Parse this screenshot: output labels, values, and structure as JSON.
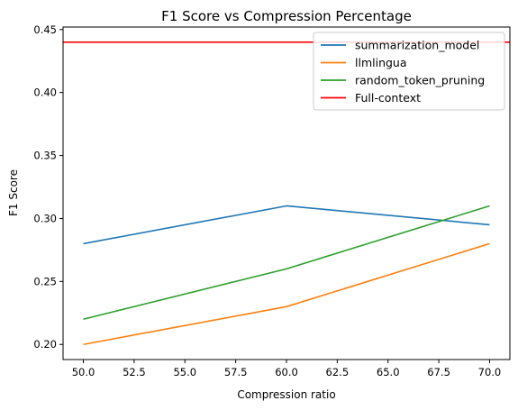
{
  "chart_data": {
    "type": "line",
    "title": "F1 Score vs Compression Percentage",
    "xlabel": "Compression ratio",
    "ylabel": "F1 Score",
    "xlim": [
      49.0,
      71.0
    ],
    "ylim": [
      0.188,
      0.452
    ],
    "x_ticks": [
      "50.0",
      "52.5",
      "55.0",
      "57.5",
      "60.0",
      "62.5",
      "65.0",
      "67.5",
      "70.0"
    ],
    "x_tick_values": [
      50.0,
      52.5,
      55.0,
      57.5,
      60.0,
      62.5,
      65.0,
      67.5,
      70.0
    ],
    "y_ticks": [
      "0.20",
      "0.25",
      "0.30",
      "0.35",
      "0.40",
      "0.45"
    ],
    "y_tick_values": [
      0.2,
      0.25,
      0.3,
      0.35,
      0.4,
      0.45
    ],
    "grid": false,
    "legend_position": "top-right",
    "x": [
      50,
      60,
      70
    ],
    "series": [
      {
        "name": "summarization_model",
        "color": "#1f77b4",
        "values": [
          0.28,
          0.31,
          0.295
        ]
      },
      {
        "name": "llmlingua",
        "color": "#ff7f0e",
        "values": [
          0.2,
          0.23,
          0.28
        ]
      },
      {
        "name": "random_token_pruning",
        "color": "#2ca02c",
        "values": [
          0.22,
          0.26,
          0.31
        ]
      }
    ],
    "hlines": [
      {
        "name": "Full-context",
        "color": "#ff0000",
        "value": 0.44
      }
    ]
  }
}
